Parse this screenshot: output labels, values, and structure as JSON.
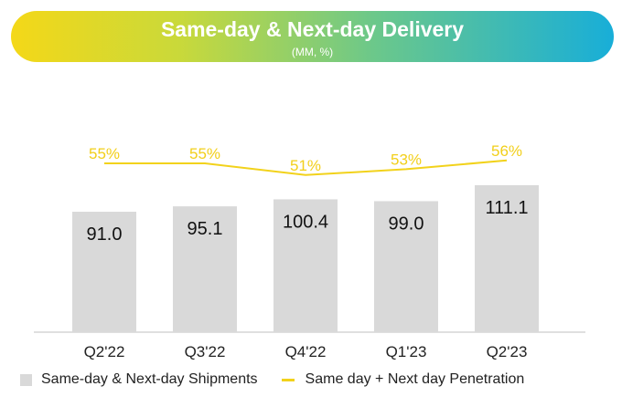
{
  "header": {
    "title": "Same-day & Next-day Delivery",
    "subtitle": "(MM, %)"
  },
  "colors": {
    "bar": "#d9d9d9",
    "line": "#f2d21b",
    "penetration_label": "#f2cf1a",
    "bar_label": "#111111",
    "axis": "#bfbfbf"
  },
  "chart_data": {
    "type": "bar",
    "categories": [
      "Q2'22",
      "Q3'22",
      "Q4'22",
      "Q1'23",
      "Q2'23"
    ],
    "series": [
      {
        "name": "Same-day & Next-day Shipments",
        "type": "bar",
        "values": [
          91.0,
          95.1,
          100.4,
          99.0,
          111.1
        ],
        "labels": [
          "91.0",
          "95.1",
          "100.4",
          "99.0",
          "111.1"
        ]
      },
      {
        "name": "Same day + Next day Penetration",
        "type": "line",
        "values": [
          55,
          55,
          51,
          53,
          56
        ],
        "labels": [
          "55%",
          "55%",
          "51%",
          "53%",
          "56%"
        ]
      }
    ],
    "title": "Same-day & Next-day Delivery",
    "subtitle": "(MM, %)",
    "legend_position": "bottom-left",
    "grid": false
  },
  "legend": {
    "bar_label": "Same-day & Next-day Shipments",
    "line_label": "Same day + Next day Penetration"
  }
}
